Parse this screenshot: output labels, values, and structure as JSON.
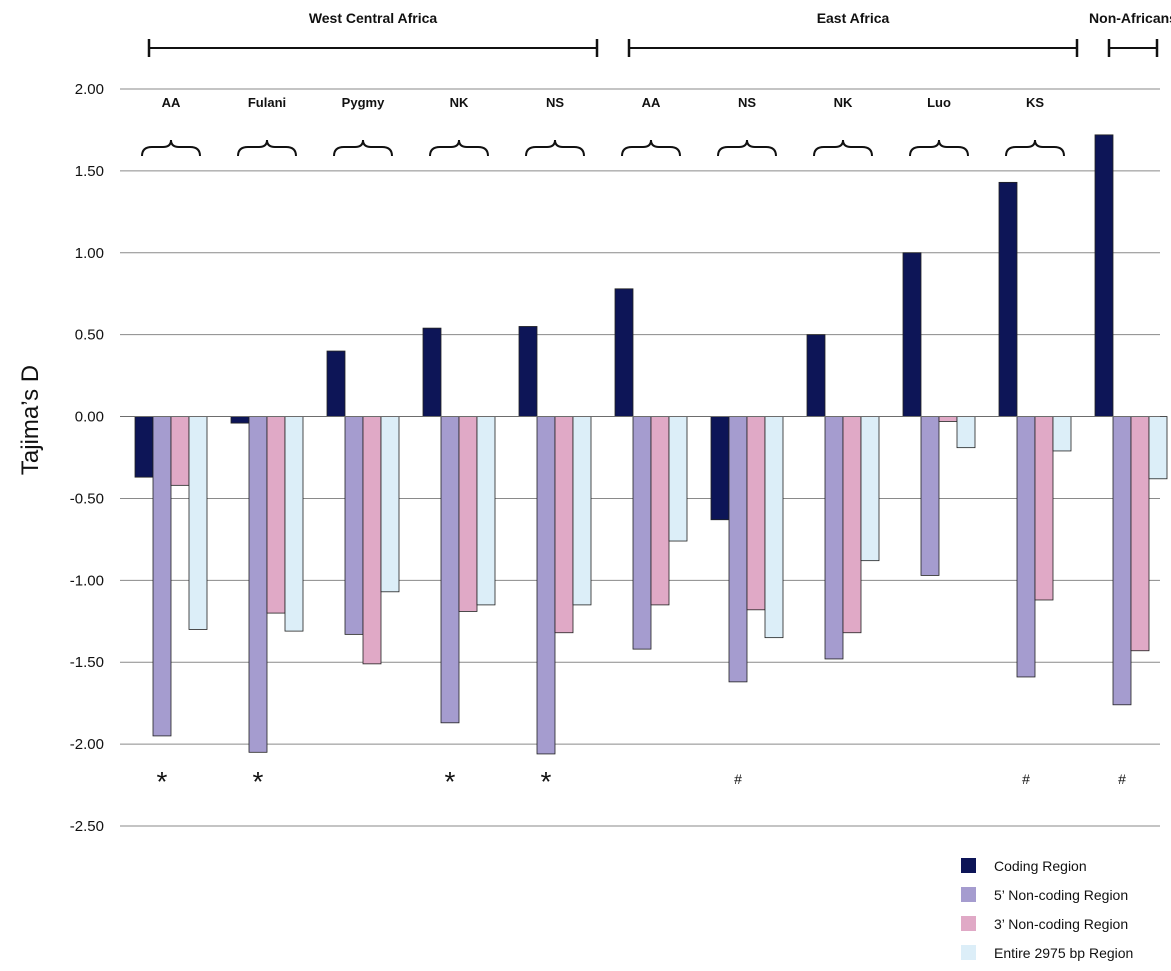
{
  "chart_data": {
    "type": "bar",
    "ylabel": "Tajima’s D",
    "ylim": [
      -2.5,
      2.0
    ],
    "yticks": [
      "2.00",
      "1.50",
      "1.00",
      "0.50",
      "0.00",
      "-0.50",
      "-1.00",
      "-1.50",
      "-2.00",
      "-2.50"
    ],
    "grid": true,
    "legend_position": "bottom-right",
    "region_groups": [
      {
        "label": "West Central Africa",
        "from": 0,
        "to": 4
      },
      {
        "label": "East Africa",
        "from": 5,
        "to": 9
      },
      {
        "label": "Non-Africans",
        "from": 10,
        "to": 10
      }
    ],
    "categories": [
      "AA",
      "Fulani",
      "Pygmy",
      "NK",
      "NS",
      "AA",
      "NS",
      "NK",
      "Luo",
      "KS",
      ""
    ],
    "series": [
      {
        "name": "Coding Region",
        "color": "#0d1557",
        "values": [
          -0.37,
          -0.04,
          0.4,
          0.54,
          0.55,
          0.78,
          -0.63,
          0.5,
          1.0,
          1.43,
          1.72
        ]
      },
      {
        "name": "5’ Non-coding Region",
        "color": "#a59ccf",
        "values": [
          -1.95,
          -2.05,
          -1.33,
          -1.87,
          -2.06,
          -1.42,
          -1.62,
          -1.48,
          -0.97,
          -1.59,
          -1.76
        ]
      },
      {
        "name": "3’ Non-coding Region",
        "color": "#e0a9c6",
        "values": [
          -0.42,
          -1.2,
          -1.51,
          -1.19,
          -1.32,
          -1.15,
          -1.18,
          -1.32,
          -0.03,
          -1.12,
          -1.43
        ]
      },
      {
        "name": "Entire 2975 bp Region",
        "color": "#dceef8",
        "values": [
          -1.3,
          -1.31,
          -1.07,
          -1.15,
          -1.15,
          -0.76,
          -1.35,
          -0.88,
          -0.19,
          -0.21,
          -0.38
        ]
      }
    ],
    "significance_marks": [
      "*",
      "*",
      "",
      "*",
      "*",
      "",
      "#",
      "",
      "",
      "#",
      "#"
    ]
  }
}
